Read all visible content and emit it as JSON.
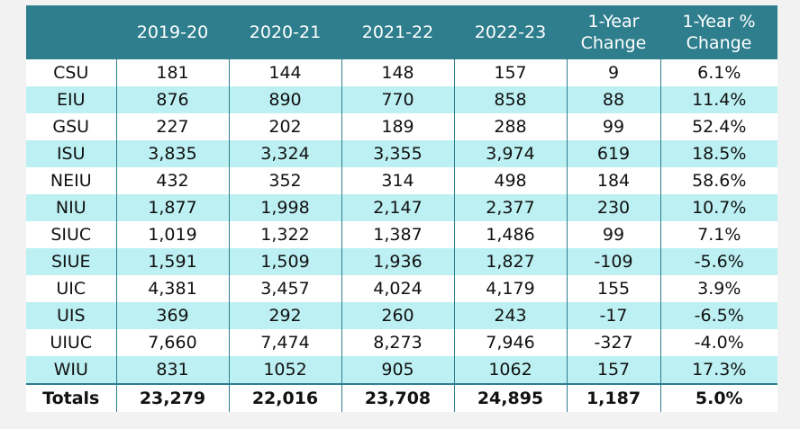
{
  "headers": [
    "",
    "2019-20",
    "2020-21",
    "2021-22",
    "2022-23",
    "1-Year Change",
    "1-Year % Change"
  ],
  "header_lines": {
    "change_line1": "1-Year",
    "change_line2": "Change",
    "pct_line1": "1-Year %",
    "pct_line2": "Change"
  },
  "rows": [
    {
      "name": "CSU",
      "y1": "181",
      "y2": "144",
      "y3": "148",
      "y4": "157",
      "change": "9",
      "pct": "6.1%"
    },
    {
      "name": "EIU",
      "y1": "876",
      "y2": "890",
      "y3": "770",
      "y4": "858",
      "change": "88",
      "pct": "11.4%"
    },
    {
      "name": "GSU",
      "y1": "227",
      "y2": "202",
      "y3": "189",
      "y4": "288",
      "change": "99",
      "pct": "52.4%"
    },
    {
      "name": "ISU",
      "y1": "3,835",
      "y2": "3,324",
      "y3": "3,355",
      "y4": "3,974",
      "change": "619",
      "pct": "18.5%"
    },
    {
      "name": "NEIU",
      "y1": "432",
      "y2": "352",
      "y3": "314",
      "y4": "498",
      "change": "184",
      "pct": "58.6%"
    },
    {
      "name": "NIU",
      "y1": "1,877",
      "y2": "1,998",
      "y3": "2,147",
      "y4": "2,377",
      "change": "230",
      "pct": "10.7%"
    },
    {
      "name": "SIUC",
      "y1": "1,019",
      "y2": "1,322",
      "y3": "1,387",
      "y4": "1,486",
      "change": "99",
      "pct": "7.1%"
    },
    {
      "name": "SIUE",
      "y1": "1,591",
      "y2": "1,509",
      "y3": "1,936",
      "y4": "1,827",
      "change": "-109",
      "pct": "-5.6%"
    },
    {
      "name": "UIC",
      "y1": "4,381",
      "y2": "3,457",
      "y3": "4,024",
      "y4": "4,179",
      "change": "155",
      "pct": "3.9%"
    },
    {
      "name": "UIS",
      "y1": "369",
      "y2": "292",
      "y3": "260",
      "y4": "243",
      "change": "-17",
      "pct": "-6.5%"
    },
    {
      "name": "UIUC",
      "y1": "7,660",
      "y2": "7,474",
      "y3": "8,273",
      "y4": "7,946",
      "change": "-327",
      "pct": "-4.0%"
    },
    {
      "name": "WIU",
      "y1": "831",
      "y2": "1052",
      "y3": "905",
      "y4": "1062",
      "change": "157",
      "pct": "17.3%"
    }
  ],
  "totals": {
    "name": "Totals",
    "y1": "23,279",
    "y2": "22,016",
    "y3": "23,708",
    "y4": "24,895",
    "change": "1,187",
    "pct": "5.0%"
  },
  "colors": {
    "header_bg": "#2e7e8e",
    "stripe": "#bdf0f2",
    "row": "#ffffff"
  }
}
